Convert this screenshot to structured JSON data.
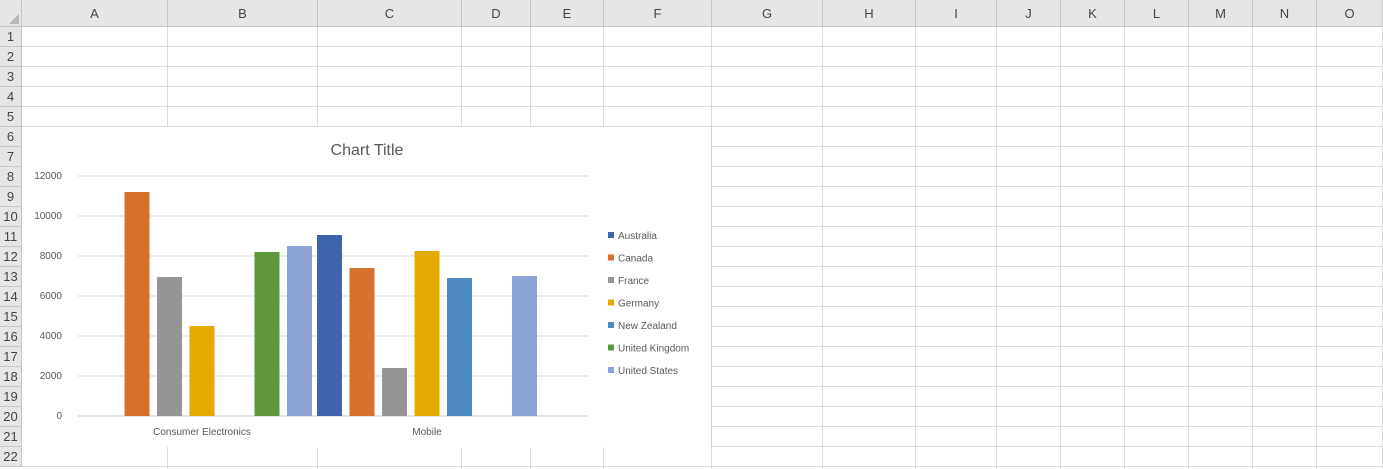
{
  "sheet": {
    "columns": [
      "A",
      "B",
      "C",
      "D",
      "E",
      "F",
      "G",
      "H",
      "I",
      "J",
      "K",
      "L",
      "M",
      "N",
      "O"
    ],
    "rows": [
      "1",
      "2",
      "3",
      "4",
      "5",
      "6",
      "7",
      "8",
      "9",
      "10",
      "11",
      "12",
      "13",
      "14",
      "15",
      "16",
      "17",
      "18",
      "19",
      "20",
      "21",
      "22"
    ]
  },
  "chart_data": {
    "type": "bar",
    "title": "Chart Title",
    "categories": [
      "Consumer Electronics",
      "Mobile"
    ],
    "ylim": [
      0,
      12000
    ],
    "yticks": [
      0,
      2000,
      4000,
      6000,
      8000,
      10000,
      12000
    ],
    "grid": true,
    "legend_position": "right",
    "series": [
      {
        "name": "Australia",
        "color": "#3f64ab",
        "values": [
          null,
          9050
        ]
      },
      {
        "name": "Canada",
        "color": "#d6712c",
        "values": [
          11200,
          7400
        ]
      },
      {
        "name": "France",
        "color": "#959595",
        "values": [
          6950,
          2400
        ]
      },
      {
        "name": "Germany",
        "color": "#e3ab00",
        "values": [
          4500,
          8250
        ]
      },
      {
        "name": "New Zealand",
        "color": "#4e89c2",
        "values": [
          null,
          6900
        ]
      },
      {
        "name": "United Kingdom",
        "color": "#5e973e",
        "values": [
          8200,
          null
        ]
      },
      {
        "name": "United States",
        "color": "#8fa4d6",
        "values": [
          8500,
          7000
        ]
      }
    ]
  }
}
